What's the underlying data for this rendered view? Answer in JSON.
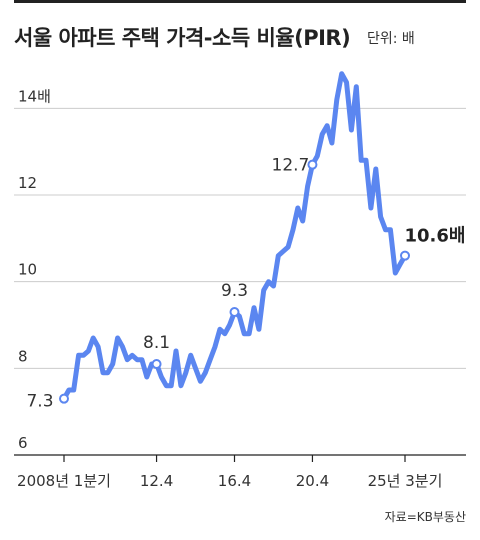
{
  "header": {
    "title": "서울 아파트 주택 가격-소득 비율(PIR)",
    "unit": "단위: 배"
  },
  "source": "자료=KB부동산",
  "colors": {
    "line": "#5b86f0",
    "grid": "#cccccc",
    "axis": "#222222",
    "text": "#333333"
  },
  "chart_data": {
    "type": "line",
    "title": "서울 아파트 주택 가격-소득 비율(PIR)",
    "xlabel": "",
    "ylabel": "",
    "ylim": [
      6,
      15
    ],
    "xlim": [
      0,
      73
    ],
    "y_ticks": [
      {
        "value": 6,
        "label": "6"
      },
      {
        "value": 8,
        "label": "8"
      },
      {
        "value": 10,
        "label": "10"
      },
      {
        "value": 12,
        "label": "12"
      },
      {
        "value": 14,
        "label": "14배"
      }
    ],
    "x_ticks": [
      {
        "value": 0,
        "label": "2008년 1분기"
      },
      {
        "value": 19,
        "label": "12.4"
      },
      {
        "value": 35,
        "label": "16.4"
      },
      {
        "value": 51,
        "label": "20.4"
      },
      {
        "value": 70,
        "label": "25년 3분기"
      }
    ],
    "grid": "horizontal",
    "series": [
      {
        "values": [
          [
            0,
            7.3
          ],
          [
            1,
            7.5
          ],
          [
            2,
            7.5
          ],
          [
            3,
            8.3
          ],
          [
            4,
            8.3
          ],
          [
            5,
            8.4
          ],
          [
            6,
            8.7
          ],
          [
            7,
            8.5
          ],
          [
            8,
            7.9
          ],
          [
            9,
            7.9
          ],
          [
            10,
            8.1
          ],
          [
            11,
            8.7
          ],
          [
            12,
            8.5
          ],
          [
            13,
            8.2
          ],
          [
            14,
            8.3
          ],
          [
            15,
            8.2
          ],
          [
            16,
            8.2
          ],
          [
            17,
            7.8
          ],
          [
            18,
            8.1
          ],
          [
            19,
            8.1
          ],
          [
            20,
            7.8
          ],
          [
            21,
            7.6
          ],
          [
            22,
            7.6
          ],
          [
            23,
            8.4
          ],
          [
            24,
            7.6
          ],
          [
            25,
            7.9
          ],
          [
            26,
            8.3
          ],
          [
            27,
            8.0
          ],
          [
            28,
            7.7
          ],
          [
            29,
            7.9
          ],
          [
            30,
            8.2
          ],
          [
            31,
            8.5
          ],
          [
            32,
            8.9
          ],
          [
            33,
            8.8
          ],
          [
            34,
            9.0
          ],
          [
            35,
            9.3
          ],
          [
            36,
            9.2
          ],
          [
            37,
            8.8
          ],
          [
            38,
            8.8
          ],
          [
            39,
            9.4
          ],
          [
            40,
            8.9
          ],
          [
            41,
            9.8
          ],
          [
            42,
            10.0
          ],
          [
            43,
            9.9
          ],
          [
            44,
            10.6
          ],
          [
            45,
            10.7
          ],
          [
            46,
            10.8
          ],
          [
            47,
            11.2
          ],
          [
            48,
            11.7
          ],
          [
            49,
            11.4
          ],
          [
            50,
            12.2
          ],
          [
            51,
            12.7
          ],
          [
            52,
            12.9
          ],
          [
            53,
            13.4
          ],
          [
            54,
            13.6
          ],
          [
            55,
            13.2
          ],
          [
            56,
            14.2
          ],
          [
            57,
            14.8
          ],
          [
            58,
            14.6
          ],
          [
            59,
            13.5
          ],
          [
            60,
            14.5
          ],
          [
            61,
            12.8
          ],
          [
            62,
            12.8
          ],
          [
            63,
            11.7
          ],
          [
            64,
            12.6
          ],
          [
            65,
            11.5
          ],
          [
            66,
            11.2
          ],
          [
            67,
            11.2
          ],
          [
            68,
            10.2
          ],
          [
            69,
            10.4
          ],
          [
            70,
            10.6
          ]
        ]
      }
    ],
    "annotations": [
      {
        "x": 0,
        "y": 7.3,
        "label": "7.3",
        "bold": false
      },
      {
        "x": 19,
        "y": 8.1,
        "label": "8.1",
        "bold": false
      },
      {
        "x": 35,
        "y": 9.3,
        "label": "9.3",
        "bold": false
      },
      {
        "x": 51,
        "y": 12.7,
        "label": "12.7",
        "bold": false
      },
      {
        "x": 70,
        "y": 10.6,
        "label": "10.6배",
        "bold": true
      }
    ]
  }
}
